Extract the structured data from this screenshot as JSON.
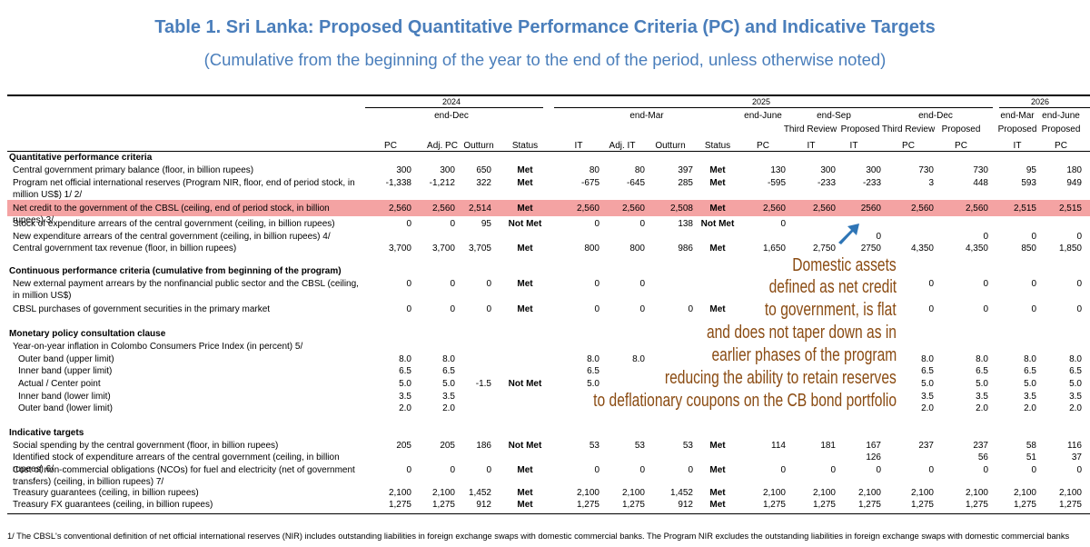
{
  "header": {
    "title": "Table 1. Sri Lanka: Proposed Quantitative Performance Criteria (PC) and Indicative Targets",
    "subtitle": "(Cumulative from the beginning of the year to the end of the period, unless otherwise noted)"
  },
  "table": {
    "years": [
      "2024",
      "2025",
      "2026"
    ],
    "periods": [
      "end-Dec",
      "end-Mar",
      "end-June",
      "end-Sep",
      "end-Dec",
      "end-Mar",
      "end-June"
    ],
    "reviews": [
      "Third Review",
      "Proposed",
      "Third Review",
      "Proposed",
      "Proposed",
      "Proposed"
    ],
    "columns": [
      "PC",
      "Adj. PC",
      "Outturn",
      "Status",
      "IT",
      "Adj. IT",
      "Outturn",
      "Status",
      "PC",
      "IT",
      "IT",
      "PC",
      "PC",
      "IT",
      "PC"
    ],
    "rows": [
      {
        "section": "Quantitative performance criteria"
      },
      {
        "label": "Central government primary balance (floor, in billion rupees)",
        "values": [
          "300",
          "300",
          "650",
          "Met",
          "80",
          "80",
          "397",
          "Met",
          "130",
          "300",
          "300",
          "730",
          "730",
          "95",
          "180"
        ]
      },
      {
        "label": "Program net official international reserves (Program NIR, floor, end of period stock, in million US$) 1/ 2/",
        "values": [
          "-1,338",
          "-1,212",
          "322",
          "Met",
          "-675",
          "-645",
          "285",
          "Met",
          "-595",
          "-233",
          "-233",
          "3",
          "448",
          "593",
          "949"
        ]
      },
      {
        "label": "Net credit to the government of the CBSL (ceiling, end of period stock, in billion rupees) 3/",
        "highlighted": true,
        "values": [
          "2,560",
          "2,560",
          "2,514",
          "Met",
          "2,560",
          "2,560",
          "2,508",
          "Met",
          "2,560",
          "2,560",
          "2560",
          "2,560",
          "2,560",
          "2,515",
          "2,515"
        ]
      },
      {
        "label": "Stock of expenditure arrears of the central government (ceiling, in billion rupees)",
        "values": [
          "0",
          "0",
          "95",
          "Not Met",
          "0",
          "0",
          "138",
          "Not Met",
          "0",
          null,
          null,
          null,
          null,
          null,
          null
        ]
      },
      {
        "label": "New expenditure arrears of the central government (ceiling, in billion rupees) 4/",
        "values": [
          null,
          null,
          null,
          null,
          null,
          null,
          null,
          null,
          null,
          null,
          "0",
          null,
          "0",
          "0",
          "0"
        ]
      },
      {
        "label": "Central government tax revenue (floor, in billion rupees)",
        "values": [
          "3,700",
          "3,700",
          "3,705",
          "Met",
          "800",
          "800",
          "986",
          "Met",
          "1,650",
          "2,750",
          "2750",
          "4,350",
          "4,350",
          "850",
          "1,850"
        ]
      },
      {
        "section": "Continuous performance criteria (cumulative from beginning of the program)"
      },
      {
        "label": "New external payment arrears by the nonfinancial public sector and the CBSL (ceiling, in million US$)",
        "values": [
          "0",
          "0",
          "0",
          "Met",
          "0",
          "0",
          null,
          null,
          null,
          null,
          null,
          "0",
          "0",
          "0",
          "0"
        ]
      },
      {
        "label": "CBSL purchases of government securities in the primary market",
        "values": [
          "0",
          "0",
          "0",
          "Met",
          "0",
          "0",
          "0",
          "Met",
          null,
          null,
          null,
          "0",
          "0",
          "0",
          "0"
        ]
      },
      {
        "section": "Monetary policy consultation clause"
      },
      {
        "label": "Year-on-year inflation in Colombo Consumers Price Index (in percent) 5/"
      },
      {
        "label": "Outer band (upper limit)",
        "values": [
          "8.0",
          "8.0",
          null,
          null,
          "8.0",
          "8.0",
          null,
          null,
          null,
          null,
          null,
          "8.0",
          "8.0",
          "8.0",
          "8.0"
        ]
      },
      {
        "label": "Inner band (upper limit)",
        "values": [
          "6.5",
          "6.5",
          null,
          null,
          "6.5",
          null,
          null,
          null,
          null,
          null,
          null,
          "6.5",
          "6.5",
          "6.5",
          "6.5"
        ]
      },
      {
        "label": "Actual / Center point",
        "values": [
          "5.0",
          "5.0",
          "-1.5",
          "Not Met",
          "5.0",
          null,
          null,
          null,
          null,
          null,
          null,
          "5.0",
          "5.0",
          "5.0",
          "5.0"
        ]
      },
      {
        "label": "Inner band (lower limit)",
        "values": [
          "3.5",
          "3.5",
          null,
          null,
          null,
          null,
          null,
          null,
          null,
          null,
          null,
          "3.5",
          "3.5",
          "3.5",
          "3.5"
        ]
      },
      {
        "label": "Outer band (lower limit)",
        "values": [
          "2.0",
          "2.0",
          null,
          null,
          null,
          null,
          null,
          null,
          null,
          null,
          null,
          "2.0",
          "2.0",
          "2.0",
          "2.0"
        ]
      },
      {
        "section": "Indicative targets"
      },
      {
        "label": "Social spending by the central government (floor, in billion rupees)",
        "values": [
          "205",
          "205",
          "186",
          "Not Met",
          "53",
          "53",
          "53",
          "Met",
          "114",
          "181",
          "167",
          "237",
          "237",
          "58",
          "116"
        ]
      },
      {
        "label": "Identified stock of expenditure arrears of the central government (ceiling, in billion rupees) 6/",
        "values": [
          null,
          null,
          null,
          null,
          null,
          null,
          null,
          null,
          null,
          null,
          "126",
          null,
          "56",
          "51",
          "37"
        ]
      },
      {
        "label": "Cost of non-commercial obligations (NCOs) for fuel and electricity (net of government transfers) (ceiling, in billion rupees) 7/",
        "values": [
          "0",
          "0",
          "0",
          "Met",
          "0",
          "0",
          "0",
          "Met",
          "0",
          "0",
          "0",
          "0",
          "0",
          "0",
          "0"
        ]
      },
      {
        "label": "Treasury guarantees (ceiling, in billion rupees)",
        "values": [
          "2,100",
          "2,100",
          "1,452",
          "Met",
          "2,100",
          "2,100",
          "1,452",
          "Met",
          "2,100",
          "2,100",
          "2,100",
          "2,100",
          "2,100",
          "2,100",
          "2,100"
        ]
      },
      {
        "label": "Treasury FX guarantees (ceiling, in billion rupees)",
        "values": [
          "1,275",
          "1,275",
          "912",
          "Met",
          "1,275",
          "1,275",
          "912",
          "Met",
          "1,275",
          "1,275",
          "1,275",
          "1,275",
          "1,275",
          "1,275",
          "1,275"
        ]
      }
    ],
    "footnote": "1/ The CBSL's conventional definition of net official international reserves (NIR) includes outstanding liabilities in foreign exchange swaps with domestic commercial banks. The Program NIR excludes the outstanding liabilities in foreign exchange swaps with domestic commercial banks"
  },
  "annotation": {
    "lines": [
      "Domestic assets",
      "defined as net credit",
      "to government, is flat",
      "and does not taper down as in",
      "earlier phases of the program",
      "reducing the ability to retain reserves",
      "to deflationary coupons on the CB bond portfolio"
    ]
  }
}
